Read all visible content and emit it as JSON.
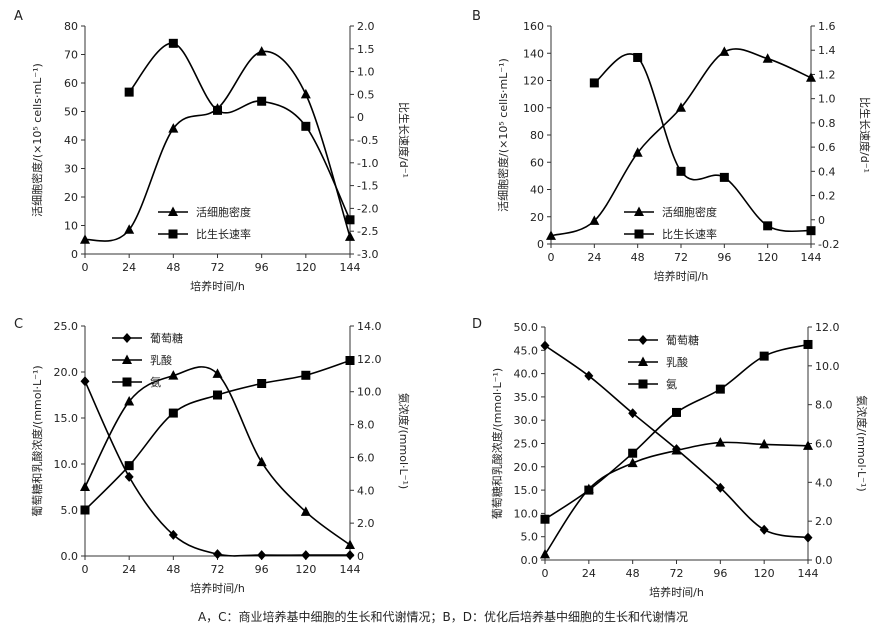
{
  "caption": "A，C：商业培养基中细胞的生长和代谢情况；B，D：优化后培养基中细胞的生长和代谢情况",
  "colors": {
    "line": "#000000",
    "axis": "#333333"
  },
  "chart_data": [
    {
      "type": "line",
      "panel": "A",
      "xlabel": "培养时间/h",
      "ylabel_left": "活细胞密度/(×10⁵ cells·mL⁻¹)",
      "ylabel_right": "比生长速度/d⁻¹",
      "x": [
        0,
        24,
        48,
        72,
        96,
        120,
        144
      ],
      "xlim": [
        0,
        144
      ],
      "ylim_left": [
        0,
        80
      ],
      "ylim_right": [
        -3.0,
        2.0
      ],
      "left_ticks": [
        "0",
        "10",
        "20",
        "30",
        "40",
        "50",
        "60",
        "70",
        "80"
      ],
      "right_ticks": [
        "-3.0",
        "-2.5",
        "-2.0",
        "-1.5",
        "-1.0",
        "-0.5",
        "0",
        "0.5",
        "1.0",
        "1.5",
        "2.0"
      ],
      "legend": [
        "活细胞密度",
        "比生长速率"
      ],
      "series": [
        {
          "name": "活细胞密度",
          "marker": "triangle",
          "axis": "left",
          "x": [
            0,
            24,
            48,
            72,
            96,
            120,
            144
          ],
          "values": [
            5,
            8.5,
            44,
            51,
            71,
            56,
            6
          ]
        },
        {
          "name": "比生长速率",
          "marker": "square",
          "axis": "right",
          "x": [
            24,
            48,
            72,
            96,
            120,
            144
          ],
          "values": [
            0.55,
            1.62,
            0.15,
            0.35,
            -0.2,
            -2.25
          ]
        }
      ]
    },
    {
      "type": "line",
      "panel": "B",
      "xlabel": "培养时间/h",
      "ylabel_left": "活细胞密度/(×10⁵ cells·mL⁻¹)",
      "ylabel_right": "比生长速度/d⁻¹",
      "x": [
        0,
        24,
        48,
        72,
        96,
        120,
        144
      ],
      "xlim": [
        0,
        144
      ],
      "ylim_left": [
        0,
        160
      ],
      "ylim_right": [
        -0.2,
        1.6
      ],
      "left_ticks": [
        "0",
        "20",
        "40",
        "60",
        "80",
        "100",
        "120",
        "140",
        "160"
      ],
      "right_ticks": [
        "-0.2",
        "0",
        "0.2",
        "0.4",
        "0.6",
        "0.8",
        "1.0",
        "1.2",
        "1.4",
        "1.6"
      ],
      "legend": [
        "活细胞密度",
        "比生长速率"
      ],
      "series": [
        {
          "name": "活细胞密度",
          "marker": "triangle",
          "axis": "left",
          "x": [
            0,
            24,
            48,
            72,
            96,
            120,
            144
          ],
          "values": [
            6,
            17,
            67,
            100,
            141,
            136,
            122
          ]
        },
        {
          "name": "比生长速率",
          "marker": "square",
          "axis": "right",
          "x": [
            24,
            48,
            72,
            96,
            120,
            144
          ],
          "values": [
            1.13,
            1.34,
            0.4,
            0.35,
            -0.05,
            -0.09
          ]
        }
      ]
    },
    {
      "type": "line",
      "panel": "C",
      "xlabel": "培养时间/h",
      "ylabel_left": "葡萄糖和乳酸浓度/(mmol·L⁻¹)",
      "ylabel_right": "氨浓度/(mmol·L⁻¹)",
      "x": [
        0,
        24,
        48,
        72,
        96,
        120,
        144
      ],
      "xlim": [
        0,
        144
      ],
      "ylim_left": [
        0,
        25
      ],
      "ylim_right": [
        0,
        14
      ],
      "left_ticks": [
        "0.0",
        "5.0",
        "10.0",
        "15.0",
        "20.0",
        "25.0"
      ],
      "right_ticks": [
        "0",
        "2.0",
        "4.0",
        "6.0",
        "8.0",
        "10.0",
        "12.0",
        "14.0"
      ],
      "legend": [
        "葡萄糖",
        "乳酸",
        "氨"
      ],
      "series": [
        {
          "name": "葡萄糖",
          "marker": "diamond",
          "axis": "left",
          "x": [
            0,
            24,
            48,
            72,
            96,
            120,
            144
          ],
          "values": [
            19.0,
            8.6,
            2.3,
            0.2,
            0.1,
            0.1,
            0.1
          ]
        },
        {
          "name": "乳酸",
          "marker": "triangle",
          "axis": "left",
          "x": [
            0,
            24,
            48,
            72,
            96,
            120,
            144
          ],
          "values": [
            7.5,
            16.8,
            19.6,
            19.8,
            10.2,
            4.8,
            1.2
          ]
        },
        {
          "name": "氨",
          "marker": "square",
          "axis": "right",
          "x": [
            0,
            24,
            48,
            72,
            96,
            120,
            144
          ],
          "values": [
            2.8,
            5.5,
            8.7,
            9.8,
            10.5,
            11.0,
            11.9
          ]
        }
      ]
    },
    {
      "type": "line",
      "panel": "D",
      "xlabel": "培养时间/h",
      "ylabel_left": "葡萄糖和乳酸浓度/(mmol·L⁻¹)",
      "ylabel_right": "氨浓度/(mmol·L⁻¹)",
      "x": [
        0,
        24,
        48,
        72,
        96,
        120,
        144
      ],
      "xlim": [
        0,
        144
      ],
      "ylim_left": [
        0,
        50
      ],
      "ylim_right": [
        0,
        12
      ],
      "left_ticks": [
        "0.0",
        "5.0",
        "10.0",
        "15.0",
        "20.0",
        "25.0",
        "30.0",
        "35.0",
        "40.0",
        "45.0",
        "50.0"
      ],
      "right_ticks": [
        "0.0",
        "2.0",
        "4.0",
        "6.0",
        "8.0",
        "10.0",
        "12.0"
      ],
      "legend": [
        "葡萄糖",
        "乳酸",
        "氨"
      ],
      "series": [
        {
          "name": "葡萄糖",
          "marker": "diamond",
          "axis": "left",
          "x": [
            0,
            24,
            48,
            72,
            96,
            120,
            144
          ],
          "values": [
            46.0,
            39.5,
            31.5,
            23.8,
            15.5,
            6.5,
            4.8
          ]
        },
        {
          "name": "乳酸",
          "marker": "triangle",
          "axis": "left",
          "x": [
            0,
            24,
            48,
            72,
            96,
            120,
            144
          ],
          "values": [
            1.2,
            15.2,
            20.8,
            23.5,
            25.2,
            24.8,
            24.5
          ]
        },
        {
          "name": "氨",
          "marker": "square",
          "axis": "right",
          "x": [
            0,
            24,
            48,
            72,
            96,
            120,
            144
          ],
          "values": [
            2.1,
            3.6,
            5.5,
            7.6,
            8.8,
            10.5,
            11.1
          ]
        }
      ]
    }
  ]
}
